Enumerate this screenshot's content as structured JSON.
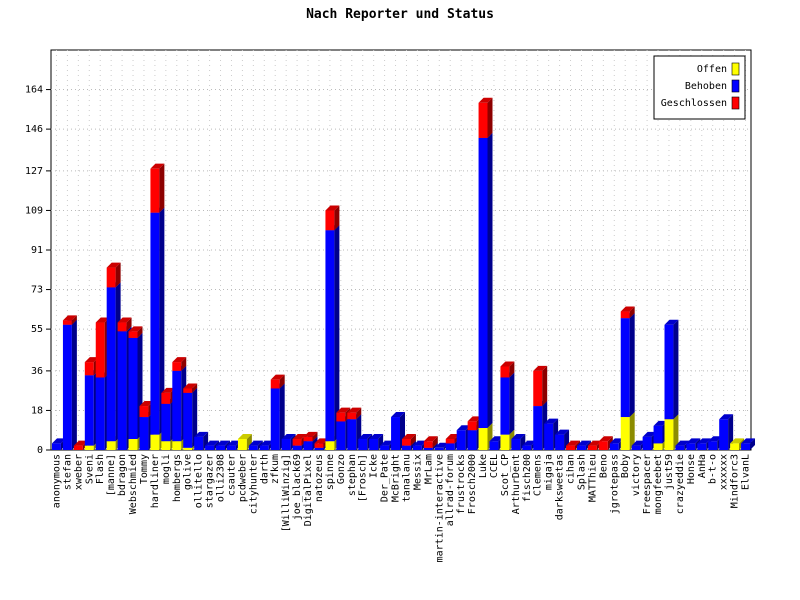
{
  "chart_data": {
    "type": "bar",
    "stacked": true,
    "title": "Nach Reporter und Status",
    "xlabel": "",
    "ylabel": "",
    "ylim": [
      0,
      182
    ],
    "yticks": [
      0,
      18,
      36,
      55,
      73,
      91,
      109,
      127,
      146,
      164
    ],
    "grid": true,
    "legend_position": "top-right",
    "categories": [
      "anonymous",
      "stefan",
      "xweber",
      "Sveni",
      "Flash",
      "[manne]",
      "bdragon",
      "Webschmied",
      "Tommy",
      "hardliner",
      "mogli",
      "hombergs",
      "golive",
      "ollitello",
      "stargazer",
      "olli2308",
      "csauter",
      "pcdweber",
      "cityhunter",
      "darth",
      "zfkum",
      "[WilliWinzig]",
      "joe_black69",
      "DigitalPixel",
      "natozeus",
      "spinne",
      "Gonzo",
      "stephan",
      "[Frosch]",
      "Icke",
      "Der_Pate",
      "McBright",
      "tanalanu",
      "Messix",
      "MrLam",
      "martin-interactive",
      "allrad-forum",
      "frustrocks",
      "Frosch2000",
      "Luke",
      "CCEL",
      "Scot_CP",
      "ArthurDent",
      "fisch200",
      "Clemens",
      "migaja",
      "darksweetas",
      "cihan",
      "Splash",
      "MATThieu",
      "Beno",
      "jgrotepass",
      "Boby",
      "victory",
      "Freespacer",
      "mongfeebet",
      "just59",
      "crazyeddie",
      "Honse",
      "AnHa",
      "b-t-o",
      "xxxxxx",
      "Mindforc3",
      "ElvanL"
    ],
    "series": [
      {
        "name": "Offen",
        "color": "#ffff00",
        "values": [
          0,
          0,
          0,
          2,
          0,
          4,
          0,
          5,
          0,
          7,
          4,
          4,
          1,
          0,
          0,
          0,
          0,
          5,
          0,
          0,
          0,
          0,
          0,
          0,
          0,
          4,
          0,
          0,
          0,
          0,
          0,
          0,
          0,
          0,
          0,
          0,
          0,
          0,
          0,
          10,
          0,
          7,
          0,
          0,
          0,
          0,
          0,
          0,
          0,
          0,
          0,
          0,
          15,
          0,
          0,
          3,
          14,
          0,
          0,
          0,
          0,
          0,
          3,
          0
        ]
      },
      {
        "name": "Behoben",
        "color": "#0000ff",
        "values": [
          3,
          57,
          0,
          32,
          33,
          70,
          54,
          46,
          15,
          101,
          17,
          32,
          25,
          6,
          2,
          2,
          2,
          0,
          2,
          2,
          28,
          5,
          2,
          4,
          1,
          96,
          13,
          14,
          5,
          5,
          2,
          15,
          2,
          2,
          1,
          1,
          3,
          9,
          9,
          132,
          4,
          26,
          5,
          2,
          20,
          12,
          7,
          0,
          2,
          0,
          0,
          3,
          45,
          2,
          6,
          8,
          43,
          2,
          3,
          3,
          4,
          14,
          0,
          3
        ]
      },
      {
        "name": "Geschlossen",
        "color": "#ff0000",
        "values": [
          0,
          2,
          2,
          6,
          25,
          9,
          4,
          3,
          5,
          20,
          5,
          4,
          2,
          0,
          0,
          0,
          0,
          0,
          0,
          0,
          4,
          0,
          3,
          2,
          2,
          9,
          4,
          3,
          0,
          0,
          0,
          0,
          3,
          0,
          3,
          0,
          2,
          0,
          4,
          16,
          0,
          5,
          0,
          0,
          16,
          0,
          0,
          2,
          0,
          2,
          4,
          0,
          3,
          0,
          0,
          0,
          0,
          0,
          0,
          0,
          0,
          0,
          0,
          0
        ]
      }
    ]
  }
}
